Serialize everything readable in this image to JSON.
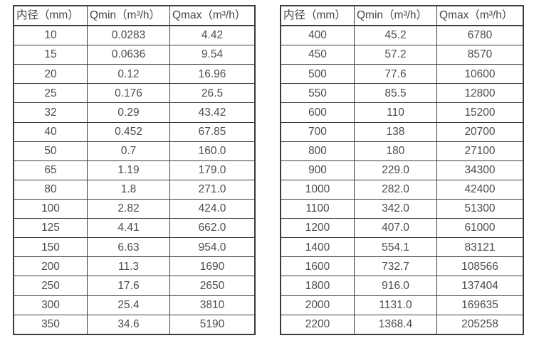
{
  "page": {
    "background_color": "#ffffff",
    "border_color": "#3b3b3b",
    "text_color": "#4c4c4c"
  },
  "tables": [
    {
      "name": "flow-spec-table-small-diameters",
      "headers": [
        "内径（mm）",
        "Qmin（m³/h）",
        "Qmax（m³/h）"
      ],
      "rows": [
        [
          "10",
          "0.0283",
          "4.42"
        ],
        [
          "15",
          "0.0636",
          "9.54"
        ],
        [
          "20",
          "0.12",
          "16.96"
        ],
        [
          "25",
          "0.176",
          "26.5"
        ],
        [
          "32",
          "0.29",
          "43.42"
        ],
        [
          "40",
          "0.452",
          "67.85"
        ],
        [
          "50",
          "0.7",
          "160.0"
        ],
        [
          "65",
          "1.19",
          "179.0"
        ],
        [
          "80",
          "1.8",
          "271.0"
        ],
        [
          "100",
          "2.82",
          "424.0"
        ],
        [
          "125",
          "4.41",
          "662.0"
        ],
        [
          "150",
          "6.63",
          "954.0"
        ],
        [
          "200",
          "11.3",
          "1690"
        ],
        [
          "250",
          "17.6",
          "2650"
        ],
        [
          "300",
          "25.4",
          "3810"
        ],
        [
          "350",
          "34.6",
          "5190"
        ]
      ]
    },
    {
      "name": "flow-spec-table-large-diameters",
      "headers": [
        "内径（mm）",
        "Qmin（m³/h）",
        "Qmax（m³/h）"
      ],
      "rows": [
        [
          "400",
          "45.2",
          "6780"
        ],
        [
          "450",
          "57.2",
          "8570"
        ],
        [
          "500",
          "77.6",
          "10600"
        ],
        [
          "550",
          "85.5",
          "12800"
        ],
        [
          "600",
          "110",
          "15200"
        ],
        [
          "700",
          "138",
          "20700"
        ],
        [
          "800",
          "180",
          "27100"
        ],
        [
          "900",
          "229.0",
          "34300"
        ],
        [
          "1000",
          "282.0",
          "42400"
        ],
        [
          "1100",
          "342.0",
          "51300"
        ],
        [
          "1200",
          "407.0",
          "61000"
        ],
        [
          "1400",
          "554.1",
          "83121"
        ],
        [
          "1600",
          "732.7",
          "108566"
        ],
        [
          "1800",
          "916.0",
          "137404"
        ],
        [
          "2000",
          "1131.0",
          "169635"
        ],
        [
          "2200",
          "1368.4",
          "205258"
        ]
      ]
    }
  ]
}
